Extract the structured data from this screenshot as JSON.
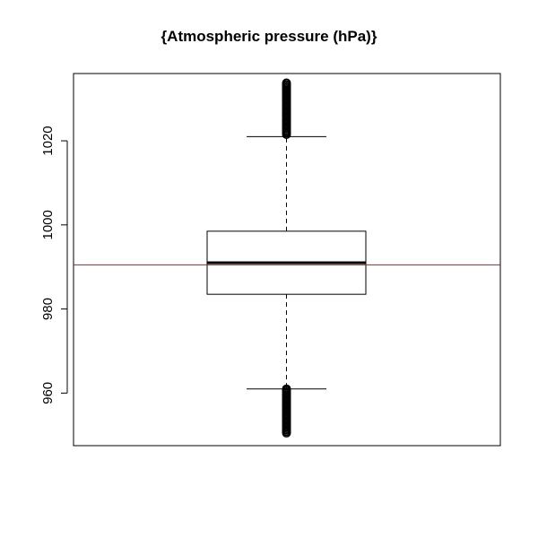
{
  "chart_data": {
    "type": "box",
    "title": "{Atmospheric pressure (hPa)}",
    "xlabel": "",
    "ylabel": "",
    "ylim": [
      947.5,
      1036
    ],
    "yticks": [
      960,
      980,
      1000,
      1020
    ],
    "ytick_labels": [
      "960",
      "980",
      "1000",
      "1020"
    ],
    "box": {
      "min": 950.5,
      "whisker_low": 961,
      "q1": 983.5,
      "median": 991,
      "q3": 998.5,
      "whisker_high": 1021,
      "max": 1034
    },
    "mean_line": 990.5,
    "colors": {
      "box": "#000000",
      "median": "#000000",
      "mean_line": "#e8000b",
      "outliers": "#000000"
    },
    "grid": false,
    "legend": "none"
  }
}
